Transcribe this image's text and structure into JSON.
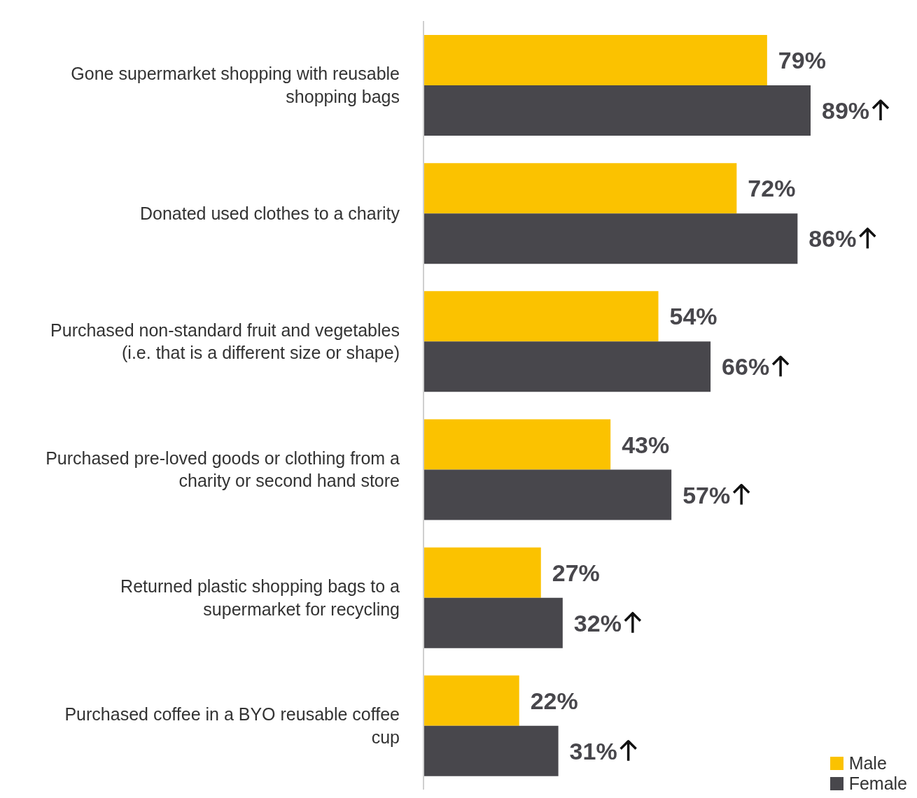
{
  "chart_data": {
    "type": "bar",
    "orientation": "horizontal",
    "categories": [
      "Gone supermarket shopping with reusable shopping bags",
      "Donated used clothes to a charity",
      "Purchased non-standard fruit and vegetables (i.e. that is a different size or shape)",
      "Purchased pre-loved goods or clothing from a charity or second hand store",
      "Returned plastic shopping bags to a supermarket for recycling",
      "Purchased coffee in a BYO reusable coffee cup"
    ],
    "series": [
      {
        "name": "Male",
        "color": "#fbc200",
        "values": [
          79,
          72,
          54,
          43,
          27,
          22
        ],
        "value_labels": [
          "79%",
          "72%",
          "54%",
          "43%",
          "27%",
          "22%"
        ]
      },
      {
        "name": "Female",
        "color": "#48474c",
        "values": [
          89,
          86,
          66,
          57,
          32,
          31
        ],
        "value_labels": [
          "89%",
          "86%",
          "66%",
          "57%",
          "32%",
          "31%"
        ]
      }
    ],
    "tick_labels": "y",
    "legend": "bottom right",
    "grid": false
  }
}
